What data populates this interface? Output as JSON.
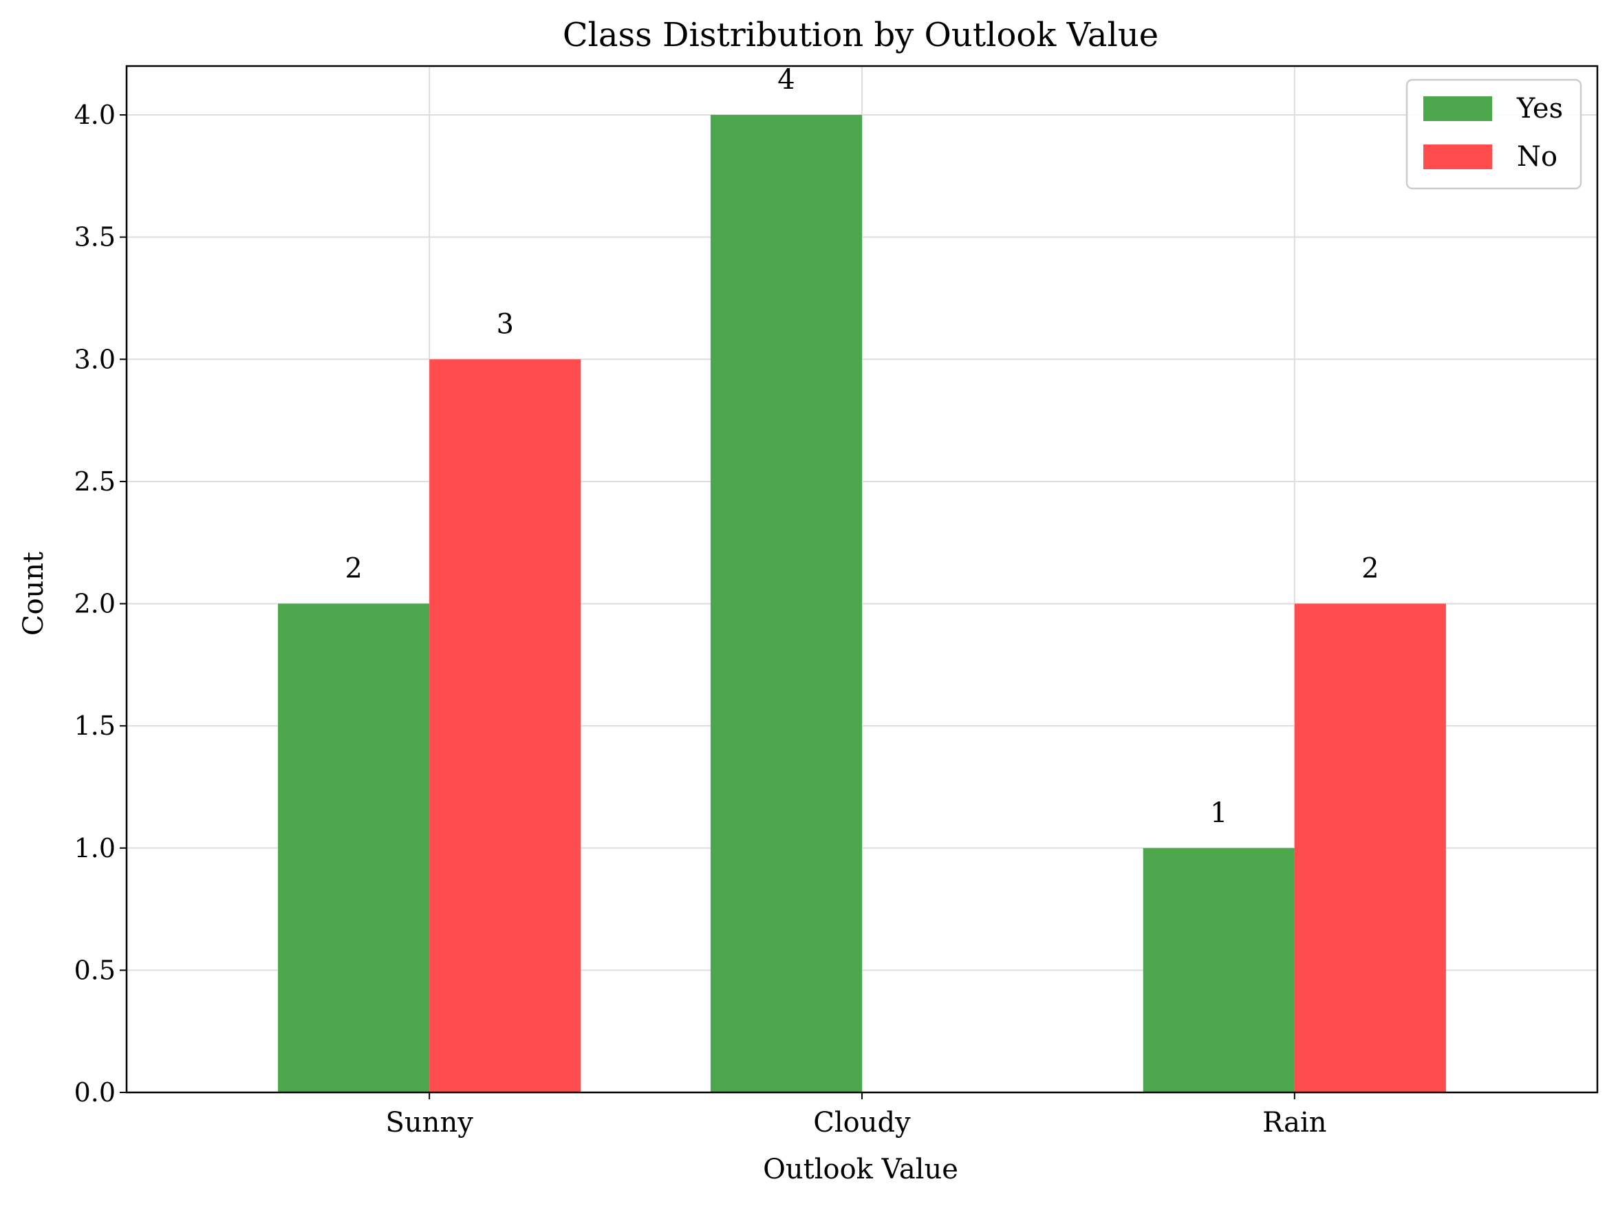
{
  "chart_data": {
    "type": "bar",
    "title": "Class Distribution by Outlook Value",
    "xlabel": "Outlook Value",
    "ylabel": "Count",
    "categories": [
      "Sunny",
      "Cloudy",
      "Rain"
    ],
    "series": [
      {
        "name": "Yes",
        "values": [
          2,
          4,
          1
        ],
        "color": "#4ca64c"
      },
      {
        "name": "No",
        "values": [
          3,
          0,
          2
        ],
        "color": "#ff4c4c"
      }
    ],
    "data_labels": [
      {
        "series": "Yes",
        "category": "Sunny",
        "text": "2",
        "value": 2
      },
      {
        "series": "No",
        "category": "Sunny",
        "text": "3",
        "value": 3
      },
      {
        "series": "Yes",
        "category": "Cloudy",
        "text": "4",
        "value": 4
      },
      {
        "series": "Yes",
        "category": "Rain",
        "text": "1",
        "value": 1
      },
      {
        "series": "No",
        "category": "Rain",
        "text": "2",
        "value": 2
      }
    ],
    "ylim": [
      0,
      4.2
    ],
    "yticks": [
      "0.0",
      "0.5",
      "1.0",
      "1.5",
      "2.0",
      "2.5",
      "3.0",
      "3.5",
      "4.0"
    ],
    "grid": true,
    "legend_position": "top-right"
  }
}
